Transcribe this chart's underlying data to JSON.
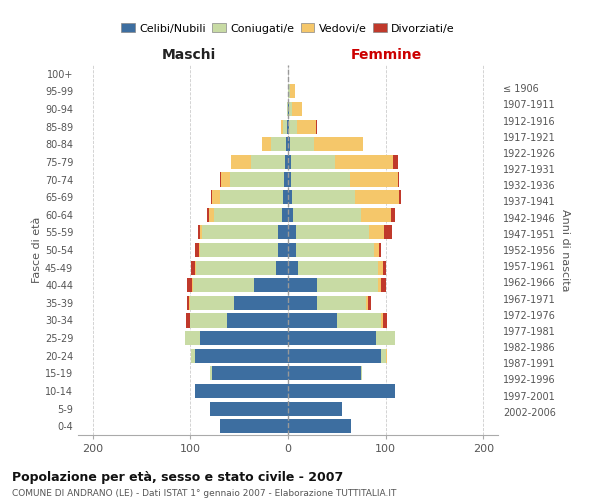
{
  "age_groups": [
    "0-4",
    "5-9",
    "10-14",
    "15-19",
    "20-24",
    "25-29",
    "30-34",
    "35-39",
    "40-44",
    "45-49",
    "50-54",
    "55-59",
    "60-64",
    "65-69",
    "70-74",
    "75-79",
    "80-84",
    "85-89",
    "90-94",
    "95-99",
    "100+"
  ],
  "birth_years": [
    "2002-2006",
    "1997-2001",
    "1992-1996",
    "1987-1991",
    "1982-1986",
    "1977-1981",
    "1972-1976",
    "1967-1971",
    "1962-1966",
    "1957-1961",
    "1952-1956",
    "1947-1951",
    "1942-1946",
    "1937-1941",
    "1932-1936",
    "1927-1931",
    "1922-1926",
    "1917-1921",
    "1912-1916",
    "1907-1911",
    "≤ 1906"
  ],
  "maschi": {
    "celibi": [
      70,
      80,
      95,
      78,
      95,
      90,
      62,
      55,
      35,
      12,
      10,
      10,
      6,
      5,
      4,
      3,
      2,
      1,
      0,
      0,
      0
    ],
    "coniugati": [
      0,
      0,
      0,
      2,
      4,
      15,
      38,
      45,
      62,
      82,
      80,
      78,
      70,
      65,
      55,
      35,
      15,
      4,
      1,
      0,
      0
    ],
    "vedovi": [
      0,
      0,
      0,
      0,
      0,
      0,
      0,
      1,
      1,
      1,
      1,
      2,
      5,
      8,
      10,
      20,
      10,
      2,
      0,
      0,
      0
    ],
    "divorziati": [
      0,
      0,
      0,
      0,
      0,
      0,
      4,
      2,
      5,
      4,
      4,
      2,
      2,
      1,
      1,
      0,
      0,
      0,
      0,
      0,
      0
    ]
  },
  "femmine": {
    "nubili": [
      65,
      55,
      110,
      75,
      95,
      90,
      50,
      30,
      30,
      10,
      8,
      8,
      5,
      4,
      3,
      3,
      2,
      1,
      1,
      0,
      0
    ],
    "coniugate": [
      0,
      0,
      0,
      1,
      5,
      20,
      45,
      50,
      62,
      82,
      80,
      75,
      70,
      65,
      60,
      45,
      25,
      8,
      3,
      2,
      0
    ],
    "vedove": [
      0,
      0,
      0,
      0,
      1,
      0,
      2,
      2,
      3,
      5,
      5,
      15,
      30,
      45,
      50,
      60,
      50,
      20,
      10,
      5,
      0
    ],
    "divorziate": [
      0,
      0,
      0,
      0,
      0,
      0,
      4,
      3,
      5,
      3,
      2,
      8,
      5,
      2,
      1,
      5,
      0,
      1,
      0,
      0,
      0
    ]
  },
  "colors": {
    "celibi_nubili": "#3d6ea0",
    "coniugati": "#c8dba4",
    "vedovi": "#f5c76a",
    "divorziati": "#c0392b"
  },
  "xlim": 215,
  "xticks": [
    -200,
    -100,
    0,
    100,
    200
  ],
  "title": "Popolazione per età, sesso e stato civile - 2007",
  "subtitle": "COMUNE DI ANDRANO (LE) - Dati ISTAT 1° gennaio 2007 - Elaborazione TUTTITALIA.IT",
  "xlabel_maschi": "Maschi",
  "xlabel_femmine": "Femmine",
  "ylabel_left": "Fasce di età",
  "ylabel_right": "Anni di nascita",
  "legend_labels": [
    "Celibi/Nubili",
    "Coniugati/e",
    "Vedovi/e",
    "Divorziati/e"
  ]
}
